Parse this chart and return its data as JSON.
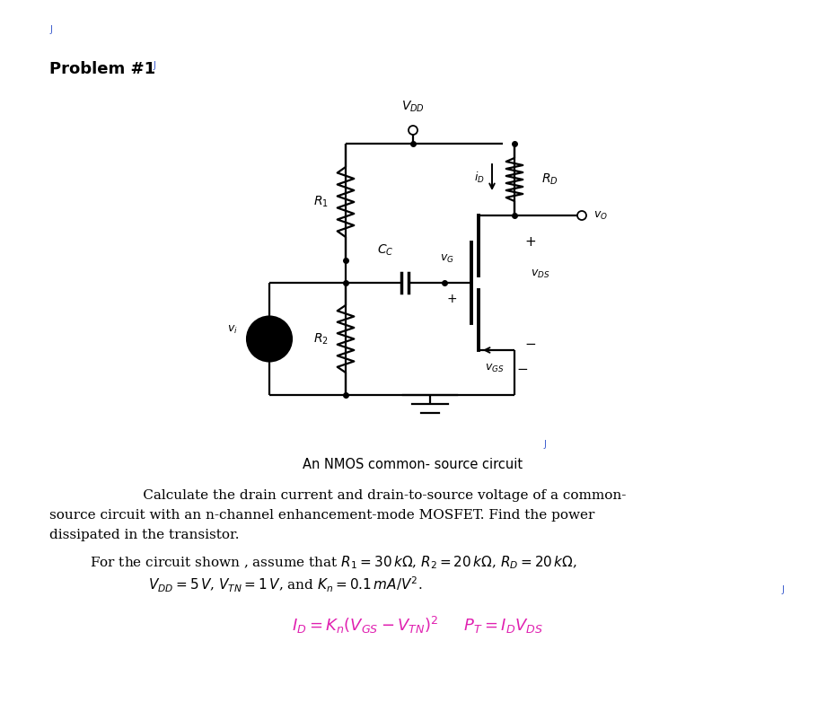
{
  "background_color": "#ffffff",
  "title_text": "Problem #1",
  "title_fontsize": 13,
  "caption": "An NMOS common- source circuit",
  "para1_line1": "Calculate the drain current and drain-to-source voltage of a common-",
  "para1_line2": "source circuit with an n-channel enhancement-mode MOSFET. Find the power",
  "para1_line3": "dissipated in the transistor.",
  "para2_line1": "For the circuit shown , assume that $R_1 = 30\\,k\\Omega$, $R_2 = 20\\,k\\Omega$, $R_D = 20\\,k\\Omega$,",
  "para2_line2": "$V_{DD} = 5\\,V$, $V_{TN} = 1\\,V$, and $K_n = 0.1\\,mA/V^2$.",
  "formula": "$I_D = K_n(V_{GS} - V_{TN})^2$     $P_T = I_D V_{DS}$",
  "formula_color": "#e020b0",
  "text_color": "#000000",
  "circuit_lw": 1.6,
  "resistor_amp": 0.01,
  "resistor_n": 6
}
